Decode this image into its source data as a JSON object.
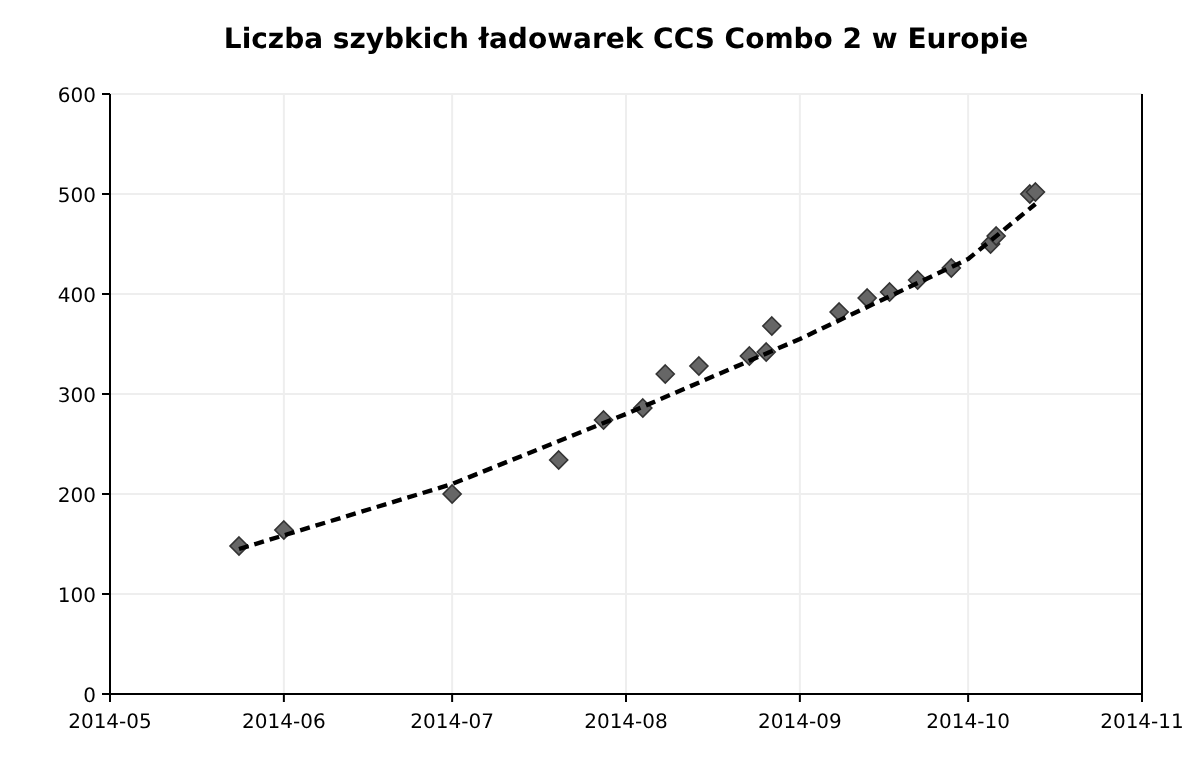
{
  "chart_data": {
    "type": "scatter",
    "title": "Liczba szybkich ładowarek CCS Combo 2 w Europie",
    "xlim": [
      "2014-05",
      "2014-11"
    ],
    "xticks": [
      "2014-05",
      "2014-06",
      "2014-07",
      "2014-08",
      "2014-09",
      "2014-10",
      "2014-11"
    ],
    "ylim": [
      0,
      600
    ],
    "yticks": [
      0,
      100,
      200,
      300,
      400,
      500,
      600
    ],
    "grid": true,
    "series": [
      {
        "color": "#666666",
        "marker": "diamond",
        "x": [
          "2014-05-24",
          "2014-06-01",
          "2014-07-01",
          "2014-07-20",
          "2014-07-28",
          "2014-08-04",
          "2014-08-08",
          "2014-08-14",
          "2014-08-23",
          "2014-08-26",
          "2014-08-27",
          "2014-09-08",
          "2014-09-13",
          "2014-09-17",
          "2014-09-22",
          "2014-09-28",
          "2014-10-05",
          "2014-10-06",
          "2014-10-12",
          "2014-10-13"
        ],
        "values": [
          148,
          164,
          200,
          234,
          274,
          286,
          320,
          328,
          338,
          342,
          368,
          382,
          396,
          402,
          414,
          426,
          450,
          458,
          500,
          502
        ]
      },
      {
        "type": "line",
        "color": "#000000",
        "marker": "none",
        "line_style": "dashed",
        "x": [
          "2014-05-24",
          "2014-07-01",
          "2014-08-01",
          "2014-09-01",
          "2014-10-01",
          "2014-10-13"
        ],
        "values": [
          145,
          210,
          280,
          355,
          435,
          490
        ]
      }
    ]
  }
}
